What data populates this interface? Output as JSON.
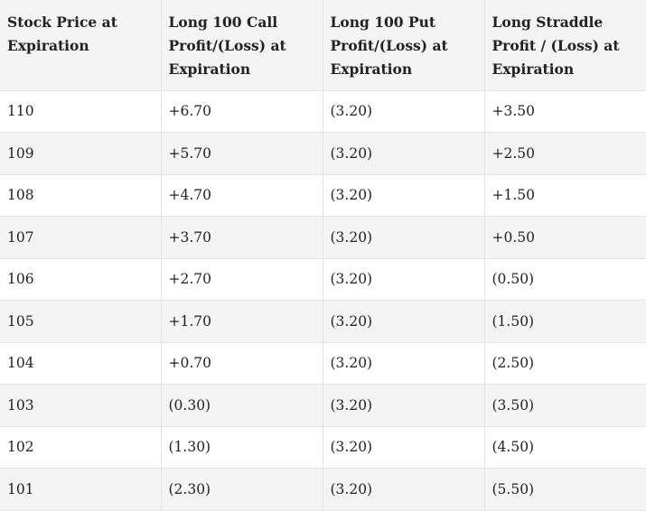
{
  "table": {
    "headers": [
      "Stock Price at Expiration",
      "Long 100 Call Profit/(Loss) at Expiration",
      "Long 100 Put Profit/(Loss) at Expiration",
      "Long Straddle Profit / (Loss) at Expiration"
    ],
    "rows": [
      [
        "110",
        "+6.70",
        "(3.20)",
        "+3.50"
      ],
      [
        "109",
        "+5.70",
        "(3.20)",
        "+2.50"
      ],
      [
        "108",
        "+4.70",
        "(3.20)",
        "+1.50"
      ],
      [
        "107",
        "+3.70",
        "(3.20)",
        "+0.50"
      ],
      [
        "106",
        "+2.70",
        "(3.20)",
        "(0.50)"
      ],
      [
        "105",
        "+1.70",
        "(3.20)",
        "(1.50)"
      ],
      [
        "104",
        "+0.70",
        "(3.20)",
        "(2.50)"
      ],
      [
        "103",
        "(0.30)",
        "(3.20)",
        "(3.50)"
      ],
      [
        "102",
        "(1.30)",
        "(3.20)",
        "(4.50)"
      ],
      [
        "101",
        "(2.30)",
        "(3.20)",
        "(5.50)"
      ]
    ]
  }
}
